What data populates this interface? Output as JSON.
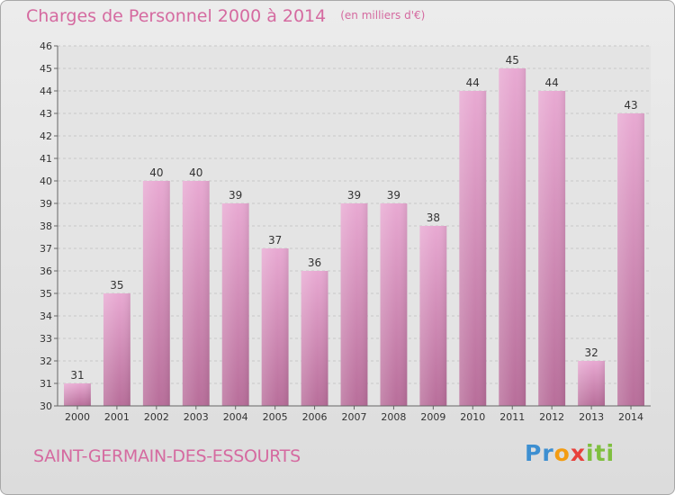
{
  "chart_data": {
    "type": "bar",
    "title": "Charges de Personnel 2000 à 2014",
    "subtitle": "(en milliers d'€)",
    "categories": [
      "2000",
      "2001",
      "2002",
      "2003",
      "2004",
      "2005",
      "2006",
      "2007",
      "2008",
      "2009",
      "2010",
      "2011",
      "2012",
      "2013",
      "2014"
    ],
    "values": [
      31,
      35,
      40,
      40,
      39,
      37,
      36,
      39,
      39,
      38,
      44,
      45,
      44,
      32,
      43
    ],
    "ylim": [
      30,
      46
    ],
    "yticks": [
      30,
      31,
      32,
      33,
      34,
      35,
      36,
      37,
      38,
      39,
      40,
      41,
      42,
      43,
      44,
      45,
      46
    ],
    "grid": true,
    "bar_color": "#dc9cc4"
  },
  "commune": "SAINT-GERMAIN-DES-ESSOURTS",
  "logo": {
    "letters": [
      "P",
      "r",
      "o",
      "x",
      "i",
      "t",
      "i"
    ],
    "colors": [
      "#3d8fd1",
      "#3d8fd1",
      "#f39c12",
      "#e8413c",
      "#7fbf3f",
      "#7fbf3f",
      "#7fbf3f"
    ]
  }
}
